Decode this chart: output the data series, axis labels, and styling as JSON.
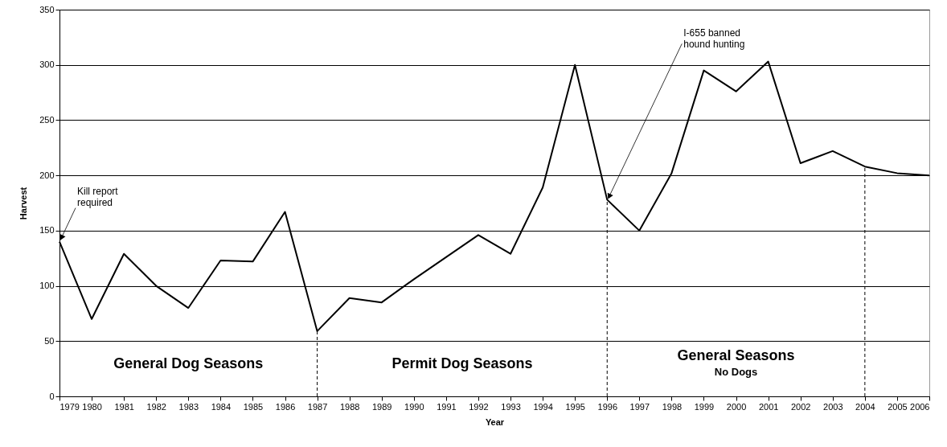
{
  "chart_data": {
    "type": "line",
    "xlabel": "Year",
    "ylabel": "Harvest",
    "line_style": "solid",
    "marker": "none",
    "grid": "y",
    "x": [
      1979,
      1980,
      1981,
      1982,
      1983,
      1984,
      1985,
      1986,
      1987,
      1988,
      1989,
      1990,
      1991,
      1992,
      1993,
      1994,
      1995,
      1996,
      1997,
      1998,
      1999,
      2000,
      2001,
      2002,
      2003,
      2004,
      2005,
      2006
    ],
    "series": [
      {
        "color": "#000000",
        "values": [
          140,
          70,
          129,
          100,
          80,
          123,
          122,
          167,
          59,
          89,
          85,
          106,
          126,
          146,
          129,
          189,
          300,
          178,
          150,
          202,
          295,
          276,
          303,
          211,
          222,
          208,
          202,
          200
        ]
      }
    ],
    "xlim": [
      1979,
      2006
    ],
    "xticks": [
      1979,
      1980,
      1981,
      1982,
      1983,
      1984,
      1985,
      1986,
      1987,
      1988,
      1989,
      1990,
      1991,
      1992,
      1993,
      1994,
      1995,
      1996,
      1997,
      1998,
      1999,
      2000,
      2001,
      2002,
      2003,
      2004,
      2005,
      2006
    ],
    "ylim": [
      0,
      350
    ],
    "yticks": [
      0,
      50,
      100,
      150,
      200,
      250,
      300,
      350
    ],
    "ref_lines": [
      {
        "axis": "x",
        "value": 1987,
        "line_style": "dashed",
        "color": "#000000"
      },
      {
        "axis": "x",
        "value": 1996,
        "line_style": "dashed",
        "color": "#000000"
      },
      {
        "axis": "x",
        "value": 2004,
        "line_style": "dashed",
        "color": "#000000"
      }
    ],
    "annotations": [
      "General Dog Seasons",
      "Permit Dog Seasons",
      "General Seasons\nNo Dogs",
      {
        "text": "Kill report\nrequired",
        "x": 1979,
        "y": 140
      },
      {
        "text": "I-655 banned\nhound hunting",
        "x": 1996,
        "y": 178
      }
    ]
  }
}
